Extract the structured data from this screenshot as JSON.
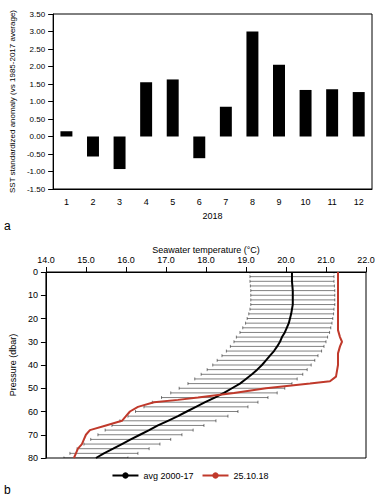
{
  "chart_data": [
    {
      "type": "bar",
      "label": "a",
      "ylabel": "SST standardized anomaly (vs 1985-2017 average)",
      "xlabel": "2018",
      "categories": [
        "1",
        "2",
        "3",
        "4",
        "5",
        "6",
        "7",
        "8",
        "9",
        "10",
        "11",
        "12"
      ],
      "values": [
        0.15,
        -0.57,
        -0.93,
        1.55,
        1.63,
        -0.62,
        0.85,
        3.0,
        2.05,
        1.33,
        1.35,
        1.27
      ],
      "color": "#000000",
      "ylim": [
        -1.5,
        3.5
      ],
      "yticks": [
        {
          "value": -1.5,
          "label": "-1.50"
        },
        {
          "value": -1,
          "label": "-1.00"
        },
        {
          "value": -0.5,
          "label": "-0.50"
        },
        {
          "value": 0,
          "label": "0.00"
        },
        {
          "value": 0.5,
          "label": "0.50"
        },
        {
          "value": 1,
          "label": "1.00"
        },
        {
          "value": 1.5,
          "label": "1.50"
        },
        {
          "value": 2,
          "label": "2.00"
        },
        {
          "value": 2.5,
          "label": "2.50"
        },
        {
          "value": 3,
          "label": "3.00"
        },
        {
          "value": 3.5,
          "label": "3.50"
        }
      ],
      "grid": false
    },
    {
      "type": "line",
      "label": "b",
      "xlabel": "Seawater temperature (°C)",
      "ylabel": "Pressure (dbar)",
      "xlim": [
        14,
        22
      ],
      "xticks": [
        {
          "value": 14,
          "label": "14.0"
        },
        {
          "value": 15,
          "label": "15.0"
        },
        {
          "value": 16,
          "label": "16.0"
        },
        {
          "value": 17,
          "label": "17.0"
        },
        {
          "value": 18,
          "label": "18.0"
        },
        {
          "value": 19,
          "label": "19.0"
        },
        {
          "value": 20,
          "label": "20.0"
        },
        {
          "value": 21,
          "label": "21.0"
        },
        {
          "value": 22,
          "label": "22.0"
        }
      ],
      "ylim": [
        80,
        0
      ],
      "yticks": [
        0,
        10,
        20,
        30,
        40,
        50,
        60,
        70,
        80
      ],
      "grid": false,
      "legend": "bottom",
      "series": [
        {
          "name": "avg 2000-17",
          "color": "#000000",
          "x": [
            20.15,
            20.15,
            20.15,
            20.16,
            20.17,
            20.17,
            20.17,
            20.17,
            20.15,
            20.13,
            20.1,
            20.07,
            20.02,
            19.97,
            19.9,
            19.85,
            19.78,
            19.7,
            19.6,
            19.5,
            19.4,
            19.28,
            19.15,
            19.0,
            18.85,
            18.65,
            18.45,
            18.22,
            17.98,
            17.75,
            17.52,
            17.3,
            17.05,
            16.8,
            16.58,
            16.35,
            16.12,
            15.9,
            15.68,
            15.45,
            15.25
          ],
          "y": [
            0,
            2,
            4,
            6,
            8,
            10,
            12,
            14,
            16,
            18,
            20,
            22,
            24,
            26,
            28,
            30,
            32,
            34,
            36,
            38,
            40,
            42,
            44,
            46,
            48,
            50,
            52,
            54,
            56,
            58,
            60,
            62,
            64,
            66,
            68,
            70,
            72,
            74,
            76,
            78,
            80
          ],
          "error": [
            1.05,
            1.05,
            1.05,
            1.05,
            1.05,
            1.05,
            1.05,
            1.05,
            1.05,
            1.06,
            1.07,
            1.08,
            1.1,
            1.12,
            1.14,
            1.15,
            1.17,
            1.19,
            1.2,
            1.22,
            1.23,
            1.25,
            1.27,
            1.28,
            1.3,
            1.32,
            1.33,
            1.33,
            1.32,
            1.3,
            1.28,
            1.25,
            1.2,
            1.15,
            1.1,
            1.05,
            1.0,
            0.95,
            0.9,
            0.85,
            0.8
          ]
        },
        {
          "name": "25.10.18",
          "color": "#c0392b",
          "x": [
            21.3,
            21.3,
            21.3,
            21.35,
            21.4,
            21.35,
            21.3,
            21.3,
            21.25,
            21.1,
            20.6,
            19.5,
            18.7,
            17.8,
            17.3,
            16.7,
            16.3,
            16.1,
            16.0,
            15.9,
            15.5,
            15.1,
            15.0,
            14.95,
            14.9,
            14.8,
            14.75,
            14.7
          ],
          "y": [
            0,
            10,
            25,
            28,
            30,
            32,
            35,
            40,
            45,
            47,
            48,
            50,
            52,
            54,
            55,
            56,
            58,
            60,
            62,
            64,
            66,
            68,
            70,
            72,
            74,
            76,
            78,
            80
          ]
        }
      ]
    }
  ]
}
